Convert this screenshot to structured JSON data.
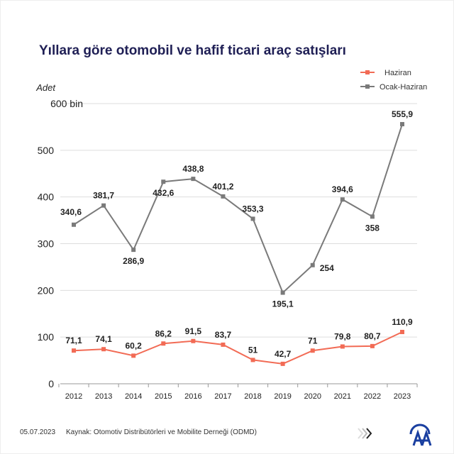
{
  "title": "Yıllara göre otomobil ve hafif ticari araç satışları",
  "footer": {
    "date": "05.07.2023",
    "source": "Kaynak: Otomotiv Distribütörleri ve Mobilite Derneği (ODMD)"
  },
  "logo": "AA",
  "chart_data": {
    "type": "line",
    "title": "Yıllara göre otomobil ve hafif ticari araç satışları",
    "ylabel": "Adet",
    "ylim": [
      0,
      600
    ],
    "yticks": [
      "0",
      "100",
      "200",
      "300",
      "400",
      "500",
      "600 bin"
    ],
    "grid": true,
    "legend": "top-right",
    "categories": [
      "2012",
      "2013",
      "2014",
      "2015",
      "2016",
      "2017",
      "2018",
      "2019",
      "2020",
      "2021",
      "2022",
      "2023"
    ],
    "series": [
      {
        "name": "Haziran",
        "color": "#f26b55",
        "values": [
          71.1,
          74.1,
          60.2,
          86.2,
          91.5,
          83.7,
          51,
          42.7,
          71,
          79.8,
          80.7,
          110.9
        ],
        "labels": [
          "71,1",
          "74,1",
          "60,2",
          "86,2",
          "91,5",
          "83,7",
          "51",
          "42,7",
          "71",
          "79,8",
          "80,7",
          "110,9"
        ]
      },
      {
        "name": "Ocak-Haziran",
        "color": "#7a7a7a",
        "values": [
          340.6,
          381.7,
          286.9,
          432.6,
          438.8,
          401.2,
          353.3,
          195.1,
          254,
          394.6,
          358,
          555.9
        ],
        "labels": [
          "340,6",
          "381,7",
          "286,9",
          "432,6",
          "438,8",
          "401,2",
          "353,3",
          "195,1",
          "254",
          "394,6",
          "358",
          "555,9"
        ]
      }
    ]
  }
}
